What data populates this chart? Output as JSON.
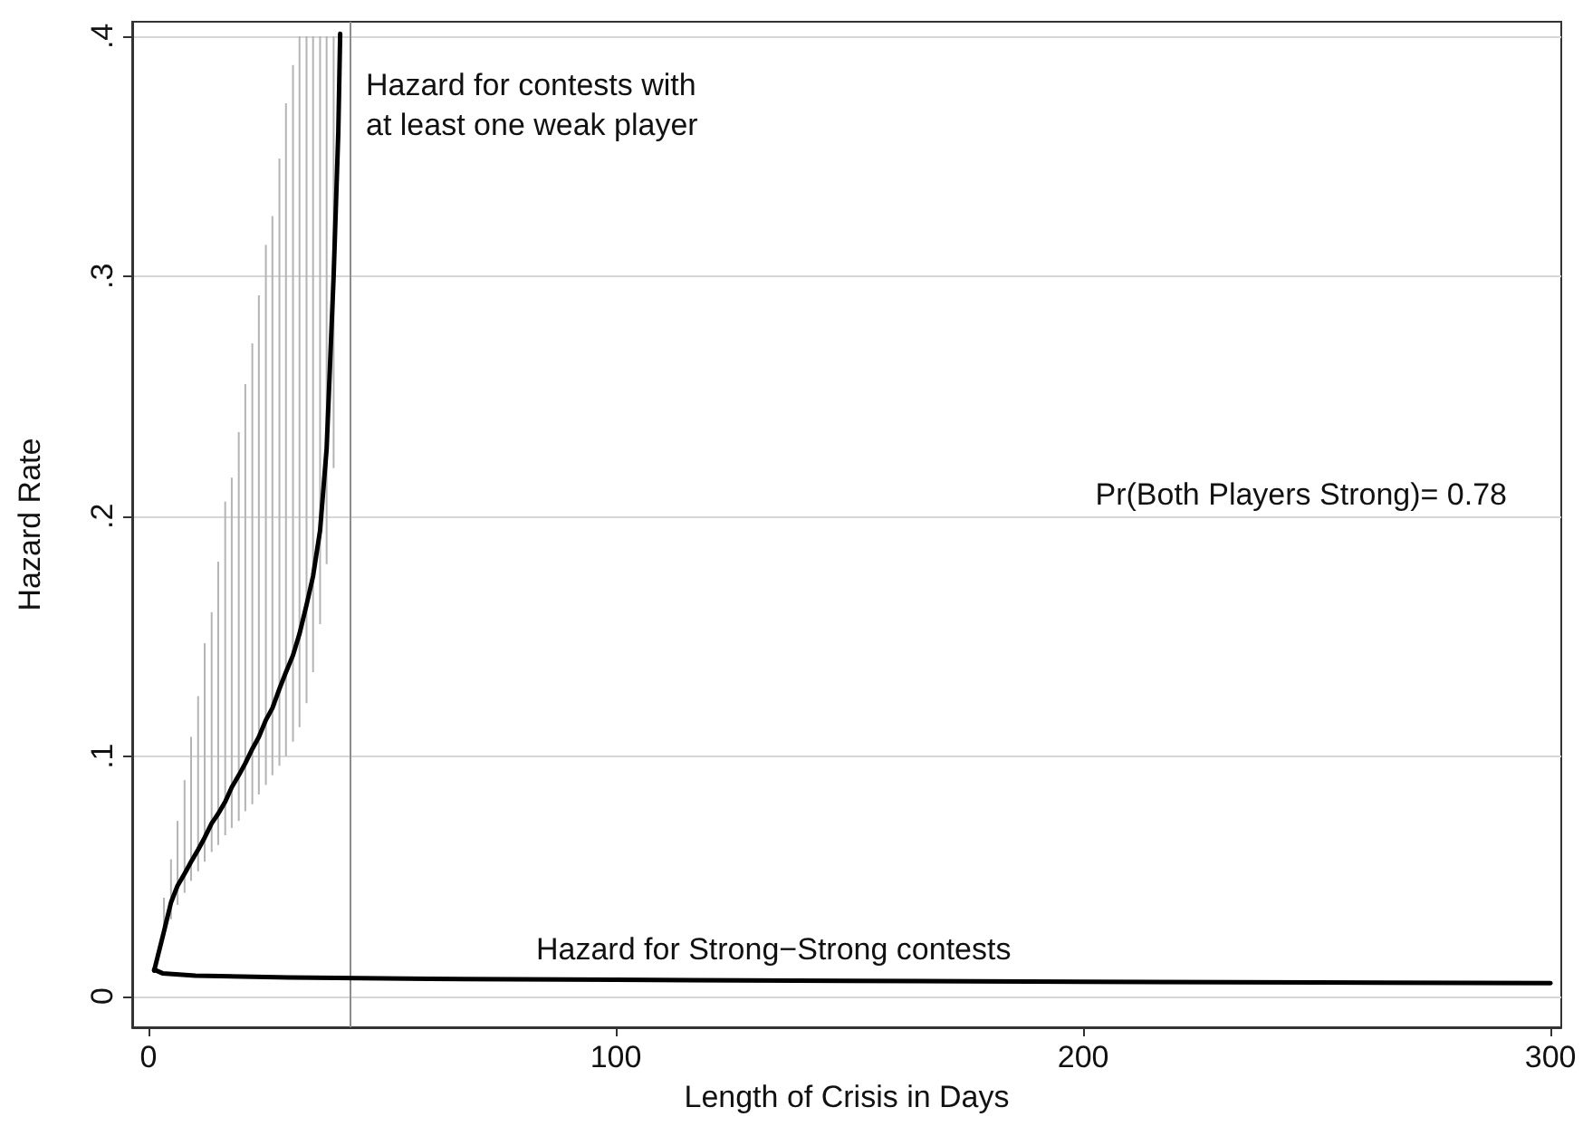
{
  "chart_data": {
    "type": "line",
    "xlabel": "Length of Crisis in Days",
    "ylabel": "Hazard Rate",
    "xlim": [
      -3.5,
      302.3
    ],
    "xticks": [
      0,
      100,
      200,
      300
    ],
    "ylim": [
      -0.013,
      0.406
    ],
    "yticks": [
      {
        "value": 0,
        "label": "0"
      },
      {
        "value": 0.1,
        "label": ".1"
      },
      {
        "value": 0.2,
        "label": ".2"
      },
      {
        "value": 0.3,
        "label": ".3"
      },
      {
        "value": 0.4,
        "label": ".4"
      }
    ],
    "grid": "y",
    "marker": "none",
    "line_style": "solid",
    "series": [
      {
        "color": "#000000",
        "x": [
          1.2,
          3.3,
          4.8,
          6.2,
          7.7,
          9.1,
          10.6,
          12,
          13.5,
          14.9,
          16.4,
          17.8,
          19.3,
          20.7,
          22.2,
          23.6,
          25.1,
          26.5,
          28,
          29.4,
          30.9,
          32.3,
          33.8,
          35.2,
          36.7,
          38.1,
          39.6,
          40.6,
          41
        ],
        "values": [
          0.0106,
          0.027,
          0.039,
          0.046,
          0.051,
          0.056,
          0.061,
          0.066,
          0.072,
          0.076,
          0.081,
          0.087,
          0.092,
          0.097,
          0.103,
          0.108,
          0.115,
          0.12,
          0.128,
          0.135,
          0.142,
          0.151,
          0.163,
          0.175,
          0.194,
          0.228,
          0.3,
          0.36,
          0.401
        ],
        "errors": [
          null,
          [
            0.025,
            0.041
          ],
          [
            0.032,
            0.057
          ],
          [
            0.038,
            0.073
          ],
          [
            0.043,
            0.09
          ],
          [
            0.048,
            0.108
          ],
          [
            0.052,
            0.125
          ],
          [
            0.056,
            0.147
          ],
          [
            0.06,
            0.16
          ],
          [
            0.063,
            0.181
          ],
          [
            0.067,
            0.206
          ],
          [
            0.07,
            0.216
          ],
          [
            0.073,
            0.235
          ],
          [
            0.077,
            0.255
          ],
          [
            0.08,
            0.272
          ],
          [
            0.084,
            0.292
          ],
          [
            0.088,
            0.313
          ],
          [
            0.092,
            0.325
          ],
          [
            0.096,
            0.349
          ],
          [
            0.1,
            0.372
          ],
          [
            0.106,
            0.388
          ],
          [
            0.112,
            0.4
          ],
          [
            0.122,
            0.4
          ],
          [
            0.135,
            0.4
          ],
          [
            0.155,
            0.4
          ],
          [
            0.18,
            0.4
          ],
          [
            0.22,
            0.4
          ],
          null,
          null
        ]
      },
      {
        "color": "#000000",
        "x": [
          1.2,
          3,
          10,
          30,
          60,
          100,
          150,
          200,
          250,
          300
        ],
        "values": [
          0.011,
          0.0095,
          0.0085,
          0.0078,
          0.0072,
          0.0068,
          0.0063,
          0.006,
          0.0057,
          0.0054
        ]
      }
    ],
    "ref_lines": [
      {
        "axis": "x",
        "value": 43,
        "color": "#8c8c8c"
      }
    ],
    "annotations": [
      "Hazard for contests with\nat least one weak player",
      "Hazard for Strong−Strong contests",
      "Pr(Both Players Strong)= 0.78"
    ]
  }
}
